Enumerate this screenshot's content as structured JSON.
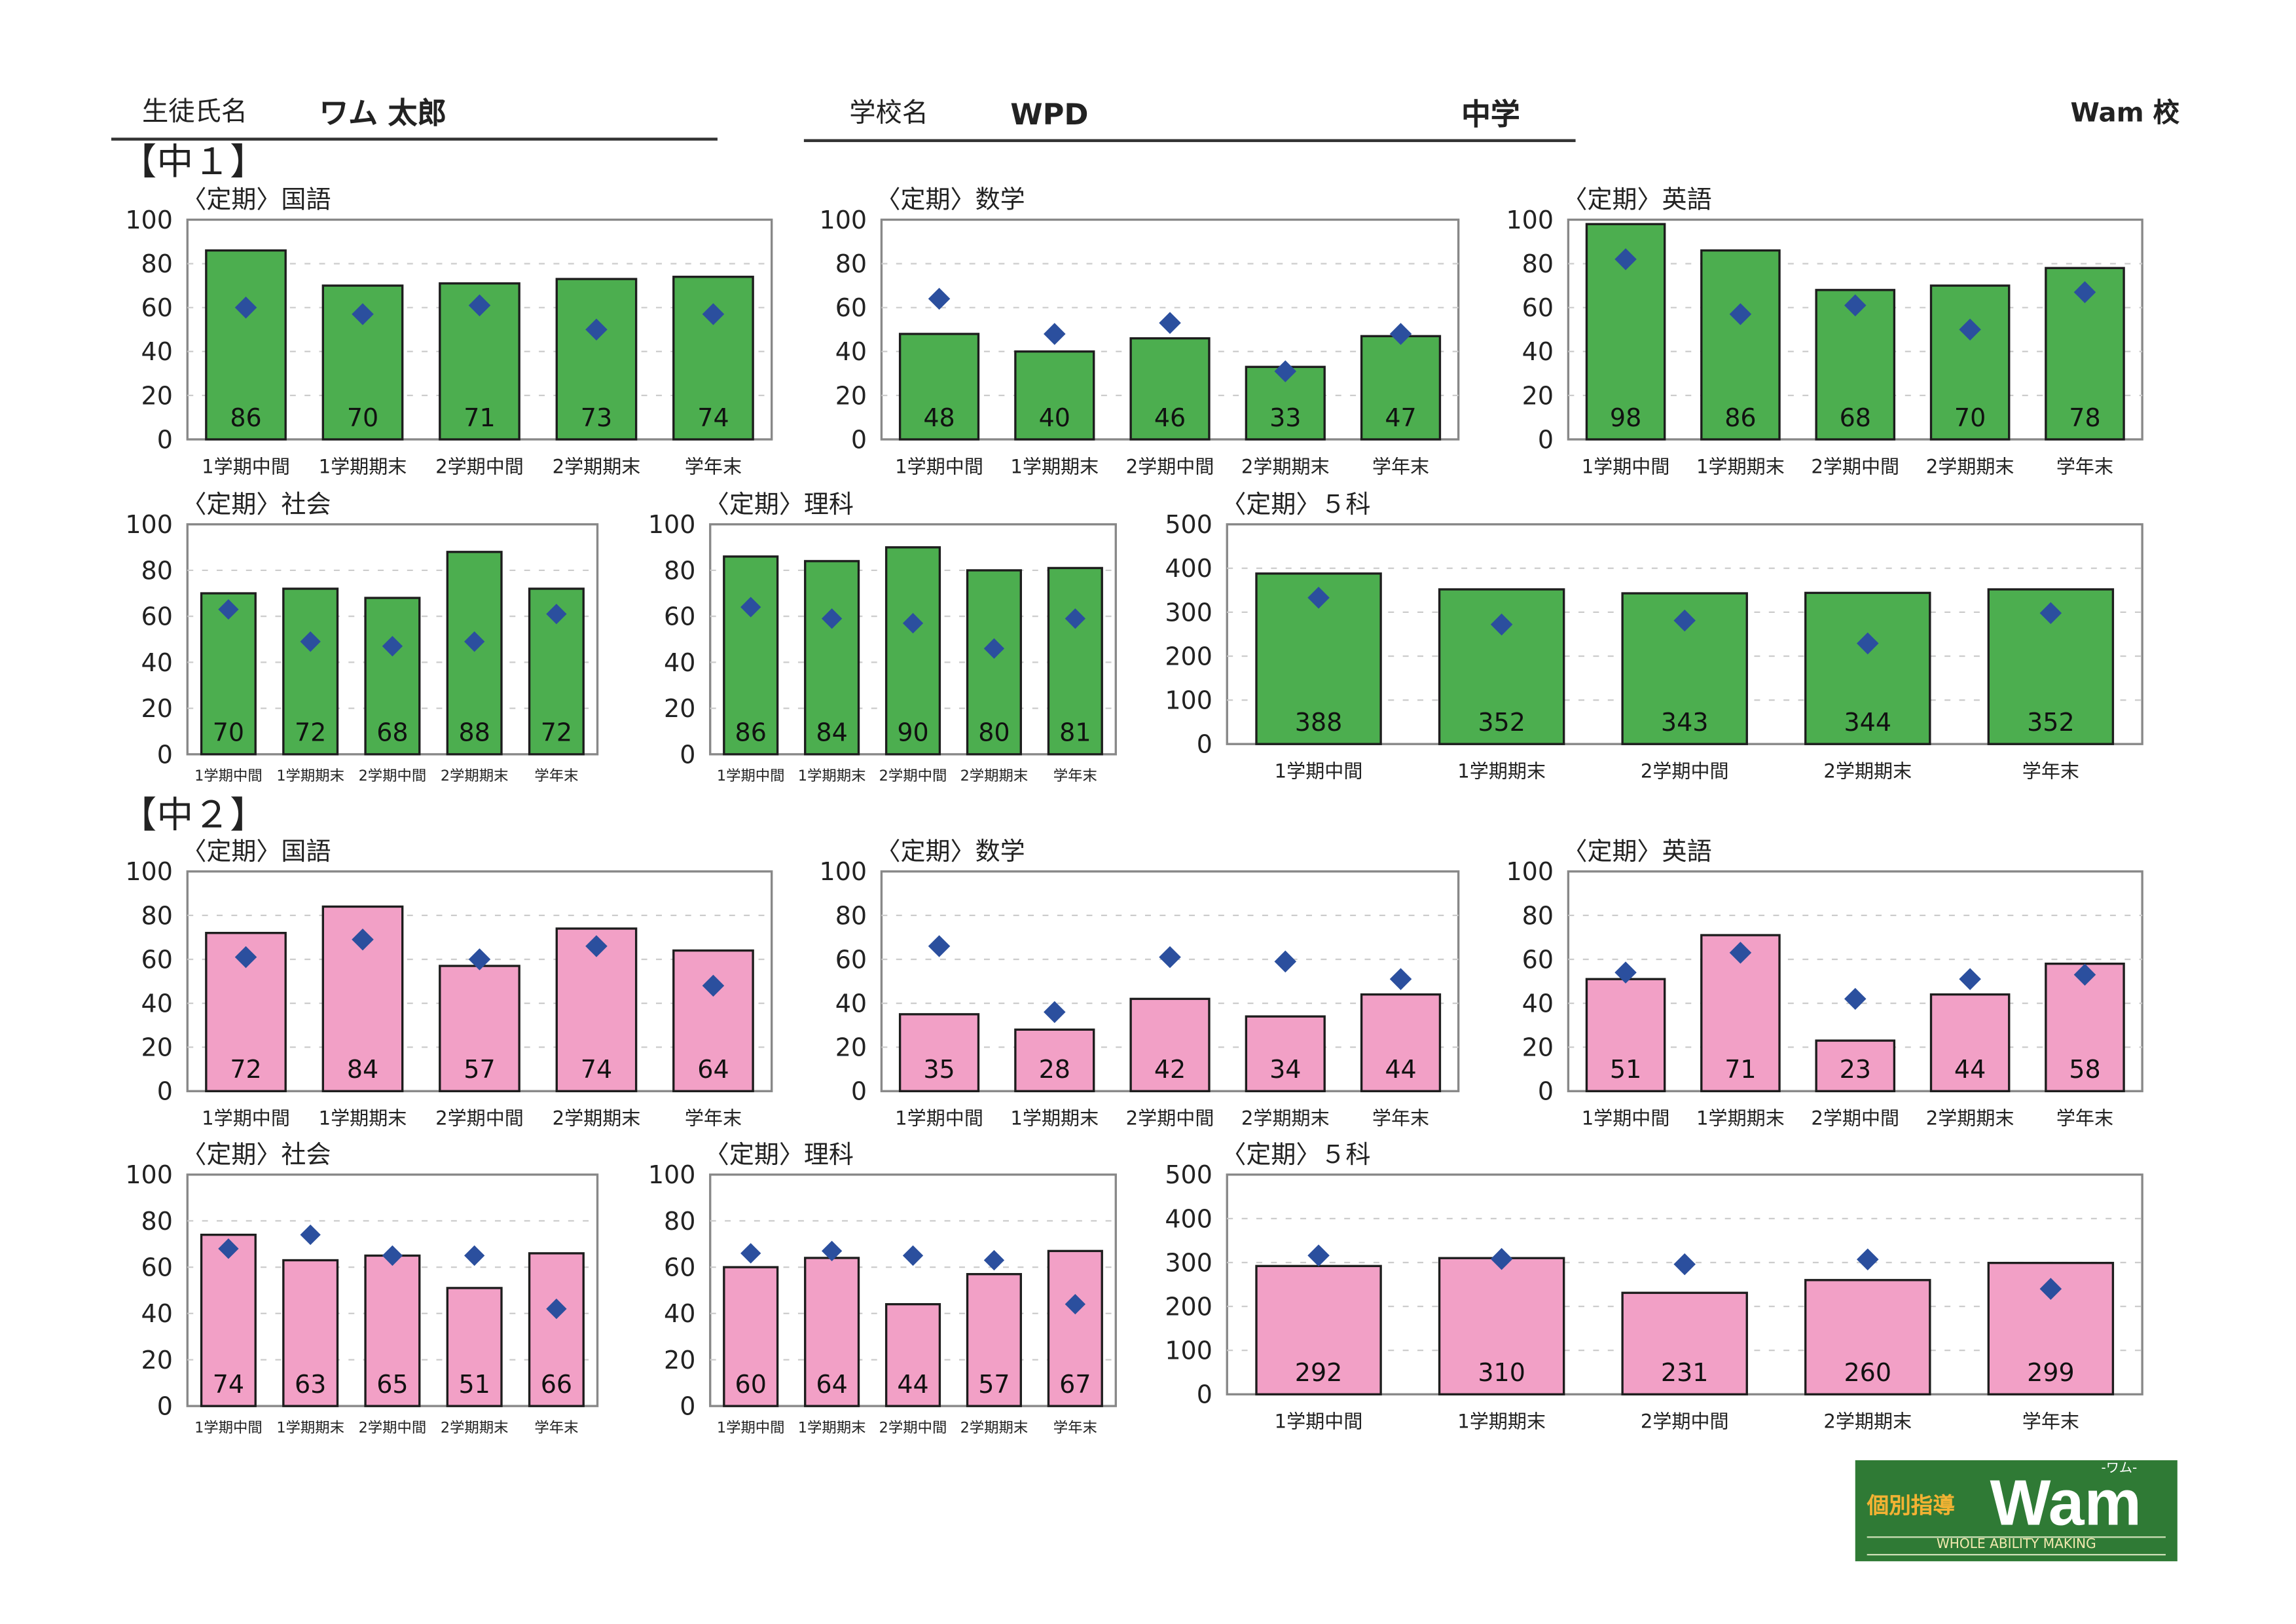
{
  "header": {
    "student_label": "生徒氏名",
    "student_name": "ワム 太郎",
    "school_label": "学校名",
    "school_name": "WPD",
    "school_type": "中学",
    "branch": "Wam 校"
  },
  "grades": {
    "g1": "【中１】",
    "g2": "【中２】"
  },
  "logo": {
    "kobetsu": "個別指導",
    "wam": "Wam",
    "ruby": "-ワム-",
    "tagline": "WHOLE ABILITY MAKING"
  },
  "colors": {
    "g1_bar": "#4cae4f",
    "g2_bar": "#f2a0c6",
    "marker": "#2b4f9e"
  },
  "chart_data": [
    {
      "id": "g1-kokugo",
      "type": "bar",
      "title": "〈定期〉国語",
      "grade": "中1",
      "categories": [
        "1学期中間",
        "1学期期末",
        "2学期中間",
        "2学期期末",
        "学年末"
      ],
      "series": [
        {
          "name": "score",
          "values": [
            86,
            70,
            71,
            73,
            74
          ]
        },
        {
          "name": "average",
          "marker": "diamond",
          "values": [
            60,
            57,
            61,
            50,
            57
          ]
        }
      ],
      "ylim": [
        0,
        100
      ],
      "yticks": [
        0,
        20,
        40,
        60,
        80,
        100
      ]
    },
    {
      "id": "g1-sugaku",
      "type": "bar",
      "title": "〈定期〉数学",
      "grade": "中1",
      "categories": [
        "1学期中間",
        "1学期期末",
        "2学期中間",
        "2学期期末",
        "学年末"
      ],
      "series": [
        {
          "name": "score",
          "values": [
            48,
            40,
            46,
            33,
            47
          ]
        },
        {
          "name": "average",
          "marker": "diamond",
          "values": [
            64,
            48,
            53,
            31,
            48
          ]
        }
      ],
      "ylim": [
        0,
        100
      ],
      "yticks": [
        0,
        20,
        40,
        60,
        80,
        100
      ]
    },
    {
      "id": "g1-eigo",
      "type": "bar",
      "title": "〈定期〉英語",
      "grade": "中1",
      "categories": [
        "1学期中間",
        "1学期期末",
        "2学期中間",
        "2学期期末",
        "学年末"
      ],
      "series": [
        {
          "name": "score",
          "values": [
            98,
            86,
            68,
            70,
            78
          ]
        },
        {
          "name": "average",
          "marker": "diamond",
          "values": [
            82,
            57,
            61,
            50,
            67
          ]
        }
      ],
      "ylim": [
        0,
        100
      ],
      "yticks": [
        0,
        20,
        40,
        60,
        80,
        100
      ]
    },
    {
      "id": "g1-shakai",
      "type": "bar",
      "title": "〈定期〉社会",
      "grade": "中1",
      "categories": [
        "1学期中間",
        "1学期期末",
        "2学期中間",
        "2学期期末",
        "学年末"
      ],
      "series": [
        {
          "name": "score",
          "values": [
            70,
            72,
            68,
            88,
            72
          ]
        },
        {
          "name": "average",
          "marker": "diamond",
          "values": [
            63,
            49,
            47,
            49,
            61
          ]
        }
      ],
      "ylim": [
        0,
        100
      ],
      "yticks": [
        0,
        20,
        40,
        60,
        80,
        100
      ]
    },
    {
      "id": "g1-rika",
      "type": "bar",
      "title": "〈定期〉理科",
      "grade": "中1",
      "categories": [
        "1学期中間",
        "1学期期末",
        "2学期中間",
        "2学期期末",
        "学年末"
      ],
      "series": [
        {
          "name": "score",
          "values": [
            86,
            84,
            90,
            80,
            81
          ]
        },
        {
          "name": "average",
          "marker": "diamond",
          "values": [
            64,
            59,
            57,
            46,
            59
          ]
        }
      ],
      "ylim": [
        0,
        100
      ],
      "yticks": [
        0,
        20,
        40,
        60,
        80,
        100
      ]
    },
    {
      "id": "g1-goka",
      "type": "bar",
      "title": "〈定期〉５科",
      "grade": "中1",
      "categories": [
        "1学期中間",
        "1学期期末",
        "2学期中間",
        "2学期期末",
        "学年末"
      ],
      "series": [
        {
          "name": "score",
          "values": [
            388,
            352,
            343,
            344,
            352
          ]
        },
        {
          "name": "average",
          "marker": "diamond",
          "values": [
            333,
            272,
            281,
            229,
            298
          ]
        }
      ],
      "ylim": [
        0,
        500
      ],
      "yticks": [
        0,
        100,
        200,
        300,
        400,
        500
      ]
    },
    {
      "id": "g2-kokugo",
      "type": "bar",
      "title": "〈定期〉国語",
      "grade": "中2",
      "categories": [
        "1学期中間",
        "1学期期末",
        "2学期中間",
        "2学期期末",
        "学年末"
      ],
      "series": [
        {
          "name": "score",
          "values": [
            72,
            84,
            57,
            74,
            64
          ]
        },
        {
          "name": "average",
          "marker": "diamond",
          "values": [
            61,
            69,
            60,
            66,
            48
          ]
        }
      ],
      "ylim": [
        0,
        100
      ],
      "yticks": [
        0,
        20,
        40,
        60,
        80,
        100
      ]
    },
    {
      "id": "g2-sugaku",
      "type": "bar",
      "title": "〈定期〉数学",
      "grade": "中2",
      "categories": [
        "1学期中間",
        "1学期期末",
        "2学期中間",
        "2学期期末",
        "学年末"
      ],
      "series": [
        {
          "name": "score",
          "values": [
            35,
            28,
            42,
            34,
            44
          ]
        },
        {
          "name": "average",
          "marker": "diamond",
          "values": [
            66,
            36,
            61,
            59,
            51
          ]
        }
      ],
      "ylim": [
        0,
        100
      ],
      "yticks": [
        0,
        20,
        40,
        60,
        80,
        100
      ]
    },
    {
      "id": "g2-eigo",
      "type": "bar",
      "title": "〈定期〉英語",
      "grade": "中2",
      "categories": [
        "1学期中間",
        "1学期期末",
        "2学期中間",
        "2学期期末",
        "学年末"
      ],
      "series": [
        {
          "name": "score",
          "values": [
            51,
            71,
            23,
            44,
            58
          ]
        },
        {
          "name": "average",
          "marker": "diamond",
          "values": [
            54,
            63,
            42,
            51,
            53
          ]
        }
      ],
      "ylim": [
        0,
        100
      ],
      "yticks": [
        0,
        20,
        40,
        60,
        80,
        100
      ]
    },
    {
      "id": "g2-shakai",
      "type": "bar",
      "title": "〈定期〉社会",
      "grade": "中2",
      "categories": [
        "1学期中間",
        "1学期期末",
        "2学期中間",
        "2学期期末",
        "学年末"
      ],
      "series": [
        {
          "name": "score",
          "values": [
            74,
            63,
            65,
            51,
            66
          ]
        },
        {
          "name": "average",
          "marker": "diamond",
          "values": [
            68,
            74,
            65,
            65,
            42
          ]
        }
      ],
      "ylim": [
        0,
        100
      ],
      "yticks": [
        0,
        20,
        40,
        60,
        80,
        100
      ]
    },
    {
      "id": "g2-rika",
      "type": "bar",
      "title": "〈定期〉理科",
      "grade": "中2",
      "categories": [
        "1学期中間",
        "1学期期末",
        "2学期中間",
        "2学期期末",
        "学年末"
      ],
      "series": [
        {
          "name": "score",
          "values": [
            60,
            64,
            44,
            57,
            67
          ]
        },
        {
          "name": "average",
          "marker": "diamond",
          "values": [
            66,
            67,
            65,
            63,
            44
          ]
        }
      ],
      "ylim": [
        0,
        100
      ],
      "yticks": [
        0,
        20,
        40,
        60,
        80,
        100
      ]
    },
    {
      "id": "g2-goka",
      "type": "bar",
      "title": "〈定期〉５科",
      "grade": "中2",
      "categories": [
        "1学期中間",
        "1学期期末",
        "2学期中間",
        "2学期期末",
        "学年末"
      ],
      "series": [
        {
          "name": "score",
          "values": [
            292,
            310,
            231,
            260,
            299
          ]
        },
        {
          "name": "average",
          "marker": "diamond",
          "values": [
            316,
            308,
            296,
            307,
            240
          ]
        }
      ],
      "ylim": [
        0,
        500
      ],
      "yticks": [
        0,
        100,
        200,
        300,
        400,
        500
      ]
    }
  ]
}
